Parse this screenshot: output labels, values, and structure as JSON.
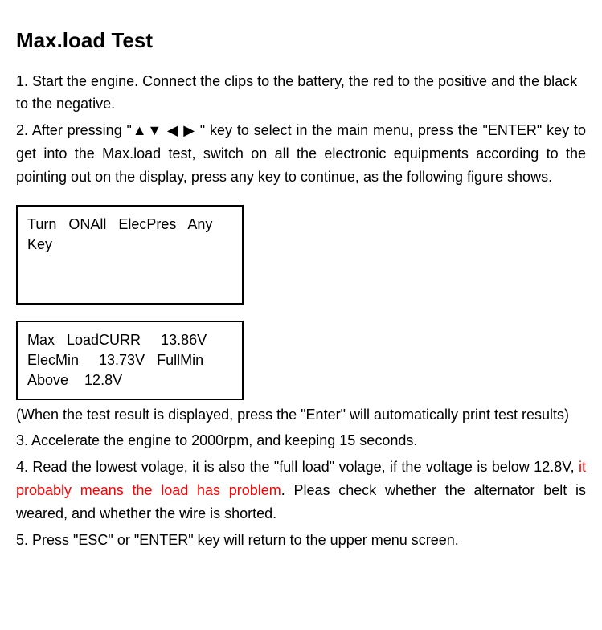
{
  "title": "Max.load Test",
  "step1": "1. Start the engine. Connect the clips to the battery, the red to the positive and the black to the negative.",
  "step2": "2. After pressing \"▲▼ ◀ ▶ \" key to select in the main menu, press the \"ENTER\" key to get into the Max.load test, switch on all the electronic equipments according to the pointing out on the display, press any key to continue, as the following figure shows.",
  "display1_line1": "Turn   ONAll   ElecPres   Any",
  "display1_line2": "Key",
  "display2_line1": "Max   LoadCURR     13.86V",
  "display2_line2": "ElecMin     13.73V   FullMin",
  "display2_line3": "Above    12.8V",
  "note": "(When the test result is displayed, press the \"Enter\" will automatically print test results)",
  "step3": "3. Accelerate the engine to 2000rpm, and keeping 15 seconds.",
  "step4_part1": "4. Read the lowest volage, it is also the \"full load\" volage, if the voltage is below 12.8V, ",
  "step4_red": "it probably means the load has problem",
  "step4_part2": ". Pleas check whether the alternator belt is weared, and whether the wire is shorted.",
  "step5": "5. Press \"ESC\" or \"ENTER\" key will return to the upper menu screen.",
  "colors": {
    "text": "#000000",
    "background": "#ffffff",
    "warning": "#ff0000",
    "border": "#000000"
  }
}
